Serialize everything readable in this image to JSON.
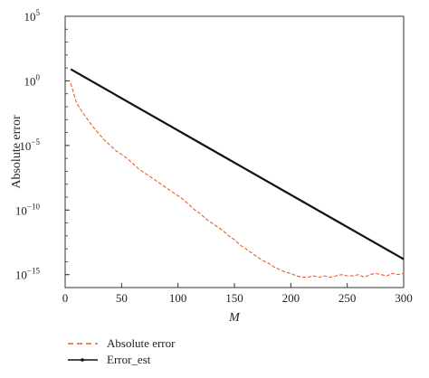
{
  "chart_data": {
    "type": "line",
    "title": "",
    "xlabel": "M",
    "ylabel": "Absolute error",
    "xlim": [
      0,
      300
    ],
    "ylim_log10": [
      -16,
      5
    ],
    "yscale": "log",
    "grid": false,
    "legend_position": "below",
    "x_ticks": [
      "0",
      "50",
      "100",
      "150",
      "200",
      "250",
      "300"
    ],
    "y_ticks": [
      {
        "base": "10",
        "exp": "5",
        "value": 5
      },
      {
        "base": "10",
        "exp": "0",
        "value": 0
      },
      {
        "base": "10",
        "exp": "−5",
        "value": -5
      },
      {
        "base": "10",
        "exp": "−10",
        "value": -10
      },
      {
        "base": "10",
        "exp": "−15",
        "value": -15
      }
    ],
    "series": [
      {
        "name": "Absolute error",
        "color": "#e8602c",
        "style": "dashed",
        "x": [
          5,
          10,
          15,
          20,
          25,
          30,
          35,
          40,
          45,
          50,
          55,
          60,
          65,
          70,
          75,
          80,
          85,
          90,
          95,
          100,
          105,
          110,
          115,
          120,
          125,
          130,
          135,
          140,
          145,
          150,
          155,
          160,
          165,
          170,
          175,
          180,
          185,
          190,
          195,
          200,
          205,
          210,
          215,
          220,
          225,
          230,
          235,
          240,
          245,
          250,
          255,
          260,
          265,
          270,
          275,
          280,
          285,
          290,
          295,
          300
        ],
        "log10_y": [
          -0.2,
          -1.7,
          -2.4,
          -3.0,
          -3.6,
          -4.1,
          -4.6,
          -5.0,
          -5.4,
          -5.7,
          -6.0,
          -6.4,
          -6.8,
          -7.1,
          -7.4,
          -7.7,
          -8.0,
          -8.3,
          -8.6,
          -8.9,
          -9.2,
          -9.6,
          -10.0,
          -10.3,
          -10.7,
          -11.0,
          -11.3,
          -11.6,
          -12.0,
          -12.3,
          -12.7,
          -13.0,
          -13.3,
          -13.6,
          -13.9,
          -14.1,
          -14.4,
          -14.6,
          -14.8,
          -14.9,
          -15.1,
          -15.2,
          -15.2,
          -15.1,
          -15.2,
          -15.1,
          -15.2,
          -15.1,
          -15.0,
          -15.1,
          -15.1,
          -15.0,
          -15.2,
          -15.0,
          -14.9,
          -15.0,
          -15.1,
          -14.9,
          -15.0,
          -14.9
        ]
      },
      {
        "name": "Error_est",
        "color": "#111111",
        "style": "solid",
        "x": [
          5,
          300
        ],
        "log10_y": [
          0.9,
          -13.8
        ]
      }
    ]
  }
}
